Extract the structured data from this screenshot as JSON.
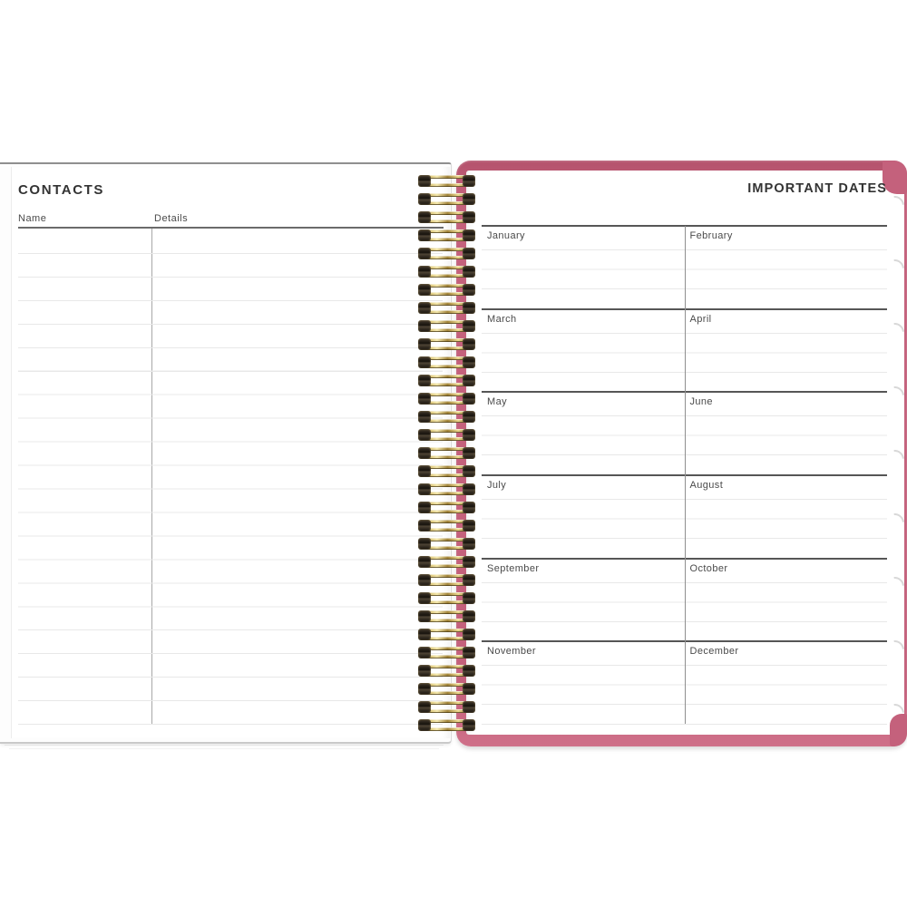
{
  "left_page": {
    "title": "CONTACTS",
    "columns": [
      {
        "label": "Name"
      },
      {
        "label": "Details"
      }
    ]
  },
  "right_page": {
    "title": "IMPORTANT DATES",
    "months": [
      "January",
      "February",
      "March",
      "April",
      "May",
      "June",
      "July",
      "August",
      "September",
      "October",
      "November",
      "December"
    ]
  },
  "binding": {
    "style": "gold twin-loop wire coil",
    "coil_count": 31
  },
  "decor": {
    "page_curl_count": 9
  },
  "colors": {
    "cover_pink": "#c4617c",
    "coil_gold": "#c9a94f",
    "coil_cap": "#1d1813",
    "title_text": "#333333",
    "label_text": "#4a4a4a",
    "rule_light": "#e8e8e8",
    "rule_dark_left": "#6b6b6b",
    "rule_dark_months": "#565656"
  }
}
